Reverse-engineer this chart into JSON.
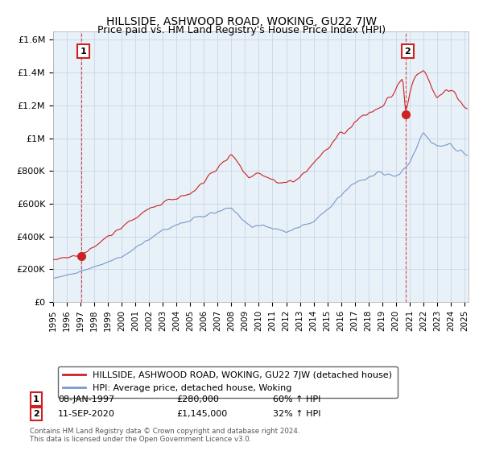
{
  "title": "HILLSIDE, ASHWOOD ROAD, WOKING, GU22 7JW",
  "subtitle": "Price paid vs. HM Land Registry's House Price Index (HPI)",
  "legend_label_red": "HILLSIDE, ASHWOOD ROAD, WOKING, GU22 7JW (detached house)",
  "legend_label_blue": "HPI: Average price, detached house, Woking",
  "annotation1_label": "1",
  "annotation1_date": "08-JAN-1997",
  "annotation1_price": "£280,000",
  "annotation1_hpi": "60% ↑ HPI",
  "annotation2_label": "2",
  "annotation2_date": "11-SEP-2020",
  "annotation2_price": "£1,145,000",
  "annotation2_hpi": "32% ↑ HPI",
  "footnote1": "Contains HM Land Registry data © Crown copyright and database right 2024.",
  "footnote2": "This data is licensed under the Open Government Licence v3.0.",
  "sale1_year": 1997.04,
  "sale1_value": 280000,
  "sale2_year": 2020.71,
  "sale2_value": 1145000,
  "red_color": "#cc2222",
  "blue_color": "#7799cc",
  "grid_color": "#c8d8e8",
  "plot_bg": "#e8f0f8",
  "ylim_min": 0,
  "ylim_max": 1650000,
  "yticks": [
    0,
    200000,
    400000,
    600000,
    800000,
    1000000,
    1200000,
    1400000,
    1600000
  ],
  "ytick_labels": [
    "£0",
    "£200K",
    "£400K",
    "£600K",
    "£800K",
    "£1M",
    "£1.2M",
    "£1.4M",
    "£1.6M"
  ],
  "xlim_min": 1995.0,
  "xlim_max": 2025.3,
  "xticks": [
    1995,
    1996,
    1997,
    1998,
    1999,
    2000,
    2001,
    2002,
    2003,
    2004,
    2005,
    2006,
    2007,
    2008,
    2009,
    2010,
    2011,
    2012,
    2013,
    2014,
    2015,
    2016,
    2017,
    2018,
    2019,
    2020,
    2021,
    2022,
    2023,
    2024,
    2025
  ],
  "background_color": "#ffffff",
  "title_fontsize": 10,
  "subtitle_fontsize": 9
}
